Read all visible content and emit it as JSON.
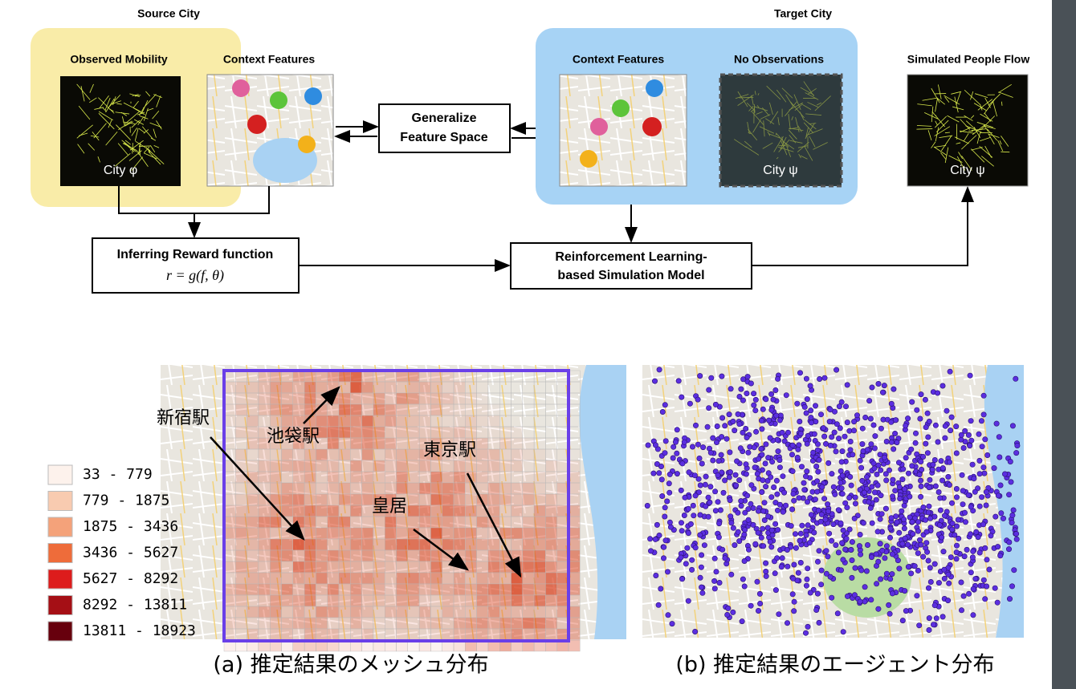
{
  "source_city": {
    "title": "Source City",
    "observed": "Observed Mobility",
    "context": "Context Features",
    "city": "City φ"
  },
  "generalize": {
    "lines": [
      "Generalize",
      "Feature Space"
    ]
  },
  "target_city": {
    "title": "Target City",
    "context": "Context Features",
    "no_obs": "No Observations",
    "city": "City ψ"
  },
  "simulated": {
    "title": "Simulated People Flow",
    "city": "City ψ"
  },
  "reward": {
    "title": "Inferring Reward function",
    "formula": "r = g(f, θ)"
  },
  "rl_model": {
    "lines": [
      "Reinforcement Learning-",
      "based Simulation Model"
    ]
  },
  "mesh_map": {
    "labels": [
      "新宿駅",
      "池袋駅",
      "東京駅",
      "皇居"
    ],
    "legend": [
      "33 - 779",
      "779 - 1875",
      "1875 - 3436",
      "3436 - 5627",
      "5627 - 8292",
      "8292 - 13811",
      "13811 - 18923"
    ],
    "caption": "(a) 推定結果のメッシュ分布"
  },
  "agent_map": {
    "caption": "(b) 推定結果のエージェント分布"
  }
}
